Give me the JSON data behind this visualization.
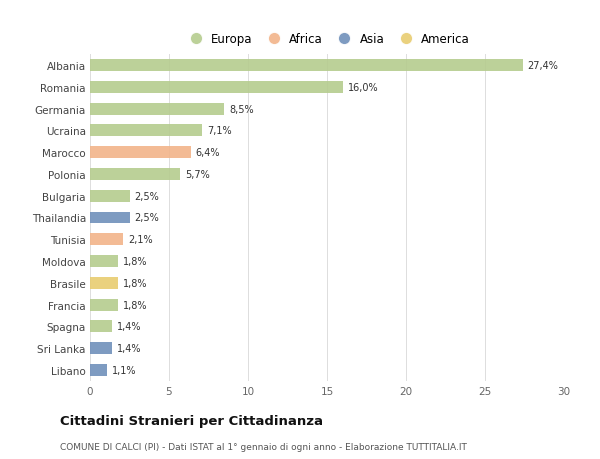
{
  "countries": [
    "Albania",
    "Romania",
    "Germania",
    "Ucraina",
    "Marocco",
    "Polonia",
    "Bulgaria",
    "Thailandia",
    "Tunisia",
    "Moldova",
    "Brasile",
    "Francia",
    "Spagna",
    "Sri Lanka",
    "Libano"
  ],
  "values": [
    27.4,
    16.0,
    8.5,
    7.1,
    6.4,
    5.7,
    2.5,
    2.5,
    2.1,
    1.8,
    1.8,
    1.8,
    1.4,
    1.4,
    1.1
  ],
  "labels": [
    "27,4%",
    "16,0%",
    "8,5%",
    "7,1%",
    "6,4%",
    "5,7%",
    "2,5%",
    "2,5%",
    "2,1%",
    "1,8%",
    "1,8%",
    "1,8%",
    "1,4%",
    "1,4%",
    "1,1%"
  ],
  "colors": [
    "#b5cc8e",
    "#b5cc8e",
    "#b5cc8e",
    "#b5cc8e",
    "#f2b48a",
    "#b5cc8e",
    "#b5cc8e",
    "#7090bb",
    "#f2b48a",
    "#b5cc8e",
    "#e8cc70",
    "#b5cc8e",
    "#b5cc8e",
    "#7090bb",
    "#7090bb"
  ],
  "legend_labels": [
    "Europa",
    "Africa",
    "Asia",
    "America"
  ],
  "legend_colors": [
    "#b5cc8e",
    "#f2b48a",
    "#7090bb",
    "#e8cc70"
  ],
  "title": "Cittadini Stranieri per Cittadinanza",
  "subtitle": "COMUNE DI CALCI (PI) - Dati ISTAT al 1° gennaio di ogni anno - Elaborazione TUTTITALIA.IT",
  "xlim": [
    0,
    30
  ],
  "xticks": [
    0,
    5,
    10,
    15,
    20,
    25,
    30
  ],
  "background_color": "#ffffff",
  "bar_height": 0.55
}
